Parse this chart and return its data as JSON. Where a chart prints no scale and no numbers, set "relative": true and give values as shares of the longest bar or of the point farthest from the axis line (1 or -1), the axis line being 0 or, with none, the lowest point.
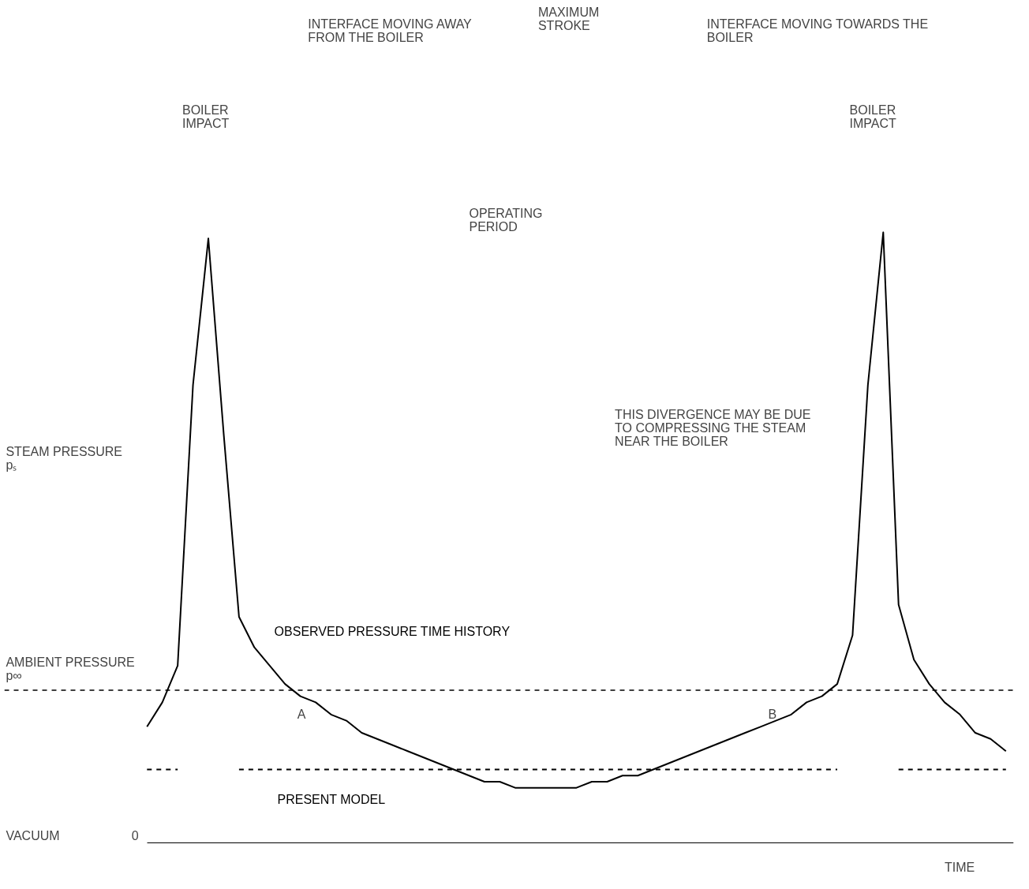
{
  "chart_data": {
    "type": "line",
    "relative": true,
    "ylabel": "STEAM PRESSURE pₛ",
    "xlabel": "TIME",
    "categories": [
      null,
      null,
      null,
      null,
      null,
      null,
      null,
      null,
      null,
      null,
      null,
      null,
      null,
      null,
      null,
      null,
      null,
      null,
      null,
      null,
      null,
      null,
      null,
      null,
      null,
      null,
      null,
      null,
      null,
      null,
      null,
      null,
      null,
      null,
      null,
      null,
      null,
      null,
      null,
      null,
      null,
      null,
      null,
      null,
      null,
      null,
      null,
      null,
      null,
      null,
      null,
      null,
      null,
      null,
      null,
      null,
      null
    ],
    "series": [
      {
        "name": "OBSERVED PRESSURE TIME HISTORY",
        "color": "#000000",
        "line_style": "solid",
        "values": [
          0.19,
          0.23,
          0.29,
          0.75,
          0.99,
          0.67,
          0.37,
          0.32,
          0.29,
          0.26,
          0.24,
          0.23,
          0.21,
          0.2,
          0.18,
          0.17,
          0.16,
          0.15,
          0.14,
          0.13,
          0.12,
          0.11,
          0.1,
          0.1,
          0.09,
          0.09,
          0.09,
          0.09,
          0.09,
          0.1,
          0.1,
          0.11,
          0.11,
          0.12,
          0.13,
          0.14,
          0.15,
          0.16,
          0.17,
          0.18,
          0.19,
          0.2,
          0.21,
          0.23,
          0.24,
          0.26,
          0.34,
          0.75,
          1.0,
          0.39,
          0.3,
          0.26,
          0.23,
          0.21,
          0.18,
          0.17,
          0.15
        ]
      },
      {
        "name": "PRESENT MODEL",
        "color": "#000000",
        "line_style": "dashed",
        "values": [
          0.12,
          0.12,
          0.12,
          null,
          null,
          null,
          0.12,
          0.12,
          0.12,
          0.12,
          0.12,
          0.12,
          0.12,
          0.12,
          0.12,
          0.12,
          0.12,
          0.12,
          0.12,
          0.12,
          0.12,
          0.12,
          0.12,
          0.12,
          0.12,
          0.12,
          0.12,
          0.12,
          0.12,
          0.12,
          0.12,
          0.12,
          0.12,
          0.12,
          0.12,
          0.12,
          0.12,
          0.12,
          0.12,
          0.12,
          0.12,
          0.12,
          0.12,
          0.12,
          0.12,
          0.12,
          null,
          null,
          null,
          0.12,
          0.12,
          0.12,
          0.12,
          0.12,
          0.12,
          0.12,
          0.12
        ]
      }
    ],
    "ref_lines": [
      {
        "axis": "y",
        "value": 0.25,
        "label": "AMBIENT PRESSURE p∞",
        "color": "#000000",
        "line_style": "dashed"
      }
    ],
    "annotations": [
      "INTERFACE MOVING AWAY FROM THE BOILER",
      "MAXIMUM STROKE",
      "INTERFACE MOVING TOWARDS THE BOILER",
      "BOILER IMPACT",
      "BOILER IMPACT",
      "OPERATING PERIOD",
      "THIS DIVERGENCE MAY BE DUE TO COMPRESSING THE STEAM NEAR THE BOILER",
      "A",
      "B",
      "VACUUM",
      "0"
    ],
    "grid": false
  }
}
